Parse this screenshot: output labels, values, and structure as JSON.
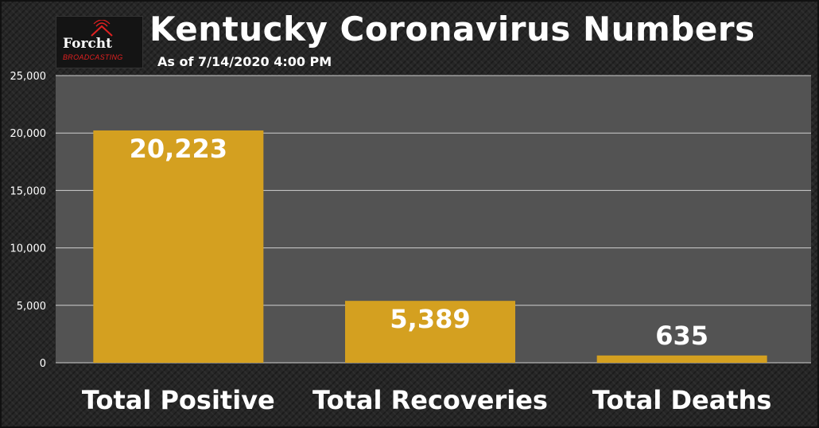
{
  "header": {
    "logo_name": "Forcht",
    "logo_sub": "BROADCASTING",
    "title": "Kentucky Coronavirus Numbers",
    "subtitle": "As of 7/14/2020 4:00 PM"
  },
  "chart_data": {
    "type": "bar",
    "title": "Kentucky Coronavirus Numbers",
    "subtitle": "As of 7/14/2020 4:00 PM",
    "categories": [
      "Total Positive",
      "Total Recoveries",
      "Total Deaths"
    ],
    "values": [
      20223,
      5389,
      635
    ],
    "data_labels": [
      "20,223",
      "5,389",
      "635"
    ],
    "ylim": [
      0,
      25000
    ],
    "yticks": [
      0,
      5000,
      10000,
      15000,
      20000,
      25000
    ],
    "ytick_labels": [
      "0",
      "5,000",
      "10,000",
      "15,000",
      "20,000",
      "25,000"
    ],
    "xlabel": "",
    "ylabel": "",
    "grid": true,
    "legend": "none",
    "colors": {
      "bar": "#d4a020",
      "plot_background": "#535353",
      "gridline": "#cfcfcf",
      "text": "#ffffff"
    }
  }
}
